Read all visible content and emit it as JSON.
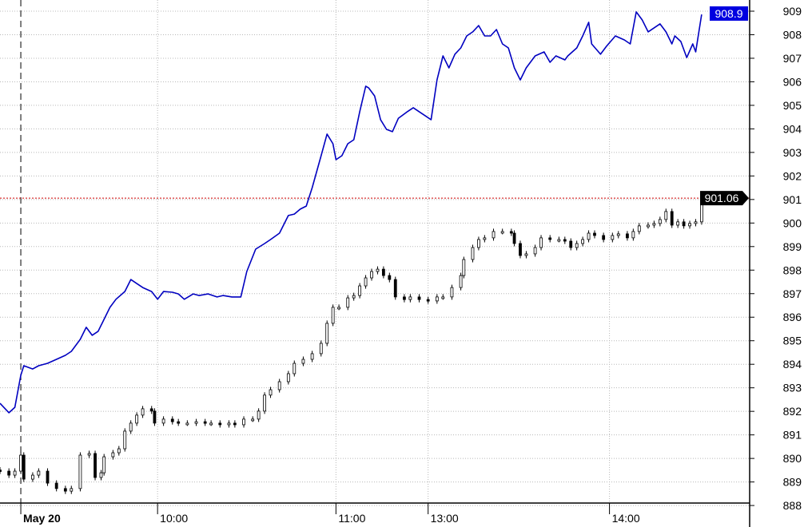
{
  "chart_data": {
    "type": "line",
    "title": "",
    "xlabel": "",
    "ylabel": "",
    "ylim": [
      887.9,
      909.5
    ],
    "xlim": [
      0,
      251
    ],
    "grid": true,
    "y_ticks": [
      "888",
      "889",
      "890",
      "891",
      "892",
      "893",
      "894",
      "895",
      "896",
      "897",
      "898",
      "899",
      "900",
      "901",
      "902",
      "903",
      "904",
      "905",
      "906",
      "907",
      "908",
      "909"
    ],
    "x_ticks": [
      {
        "label": "May 20",
        "x": 7,
        "bold": true
      },
      {
        "label": "10:00",
        "x": 53
      },
      {
        "label": "11:00",
        "x": 113
      },
      {
        "label": "13:00",
        "x": 144
      },
      {
        "label": "14:00",
        "x": 205
      }
    ],
    "session_divider_x": 7,
    "series": [
      {
        "style": "line",
        "color": "#0000c0",
        "last_label": "908.9",
        "x": [
          0,
          3,
          5,
          7,
          8,
          11,
          13,
          16,
          19,
          22,
          24,
          27,
          29,
          31,
          33,
          35,
          37,
          39,
          42,
          44,
          46,
          48,
          51,
          53,
          55,
          58,
          60,
          62,
          65,
          67,
          70,
          73,
          75,
          78,
          81,
          83,
          86,
          89,
          91,
          94,
          97,
          99,
          101,
          103,
          105,
          108,
          110,
          112,
          113,
          115,
          117,
          119,
          121,
          123,
          124,
          126,
          128,
          130,
          132,
          134,
          137,
          139,
          141,
          143,
          145,
          147,
          149,
          151,
          153,
          155,
          157,
          159,
          161,
          163,
          165,
          167,
          169,
          171,
          173,
          175,
          177,
          180,
          183,
          185,
          187,
          190,
          191,
          194,
          196,
          198,
          199,
          202,
          204,
          207,
          210,
          212,
          214,
          216,
          218,
          220,
          222,
          224,
          226,
          227,
          229,
          231,
          233,
          234,
          236
        ],
        "values": [
          892.34,
          891.94,
          892.17,
          893.53,
          893.94,
          893.8,
          893.94,
          894.04,
          894.21,
          894.38,
          894.55,
          895.06,
          895.57,
          895.23,
          895.4,
          895.91,
          896.42,
          896.76,
          897.09,
          897.6,
          897.43,
          897.26,
          897.09,
          896.76,
          897.09,
          897.06,
          896.99,
          896.76,
          896.99,
          896.92,
          896.99,
          896.86,
          896.92,
          896.86,
          896.86,
          897.94,
          898.89,
          899.13,
          899.3,
          899.57,
          900.32,
          900.38,
          900.59,
          900.72,
          901.5,
          902.86,
          903.78,
          903.37,
          902.69,
          902.86,
          903.37,
          903.54,
          904.73,
          905.81,
          905.74,
          905.4,
          904.39,
          903.98,
          903.88,
          904.45,
          904.73,
          904.9,
          904.73,
          904.56,
          904.39,
          906.08,
          907.1,
          906.59,
          907.17,
          907.44,
          907.95,
          908.12,
          908.39,
          907.95,
          907.95,
          908.22,
          907.61,
          907.44,
          906.59,
          906.08,
          906.59,
          907.1,
          907.27,
          906.83,
          907.1,
          906.93,
          907.1,
          907.44,
          907.95,
          908.53,
          907.61,
          907.17,
          907.51,
          907.95,
          907.78,
          907.61,
          908.97,
          908.63,
          908.12,
          908.29,
          908.46,
          908.12,
          907.61,
          907.95,
          907.71,
          907.03,
          907.61,
          907.27,
          908.86
        ]
      },
      {
        "style": "candlestick",
        "color": "#000000",
        "last_label": "901.06",
        "reference_line": 901.06,
        "reference_color": "#d00000",
        "x": [
          0,
          3,
          5,
          7,
          8,
          11,
          13,
          16,
          19,
          22,
          24,
          27,
          30,
          32,
          34,
          35,
          38,
          40,
          42,
          44,
          46,
          48,
          51,
          52,
          55,
          58,
          60,
          63,
          66,
          69,
          71,
          74,
          77,
          79,
          82,
          85,
          87,
          89,
          91,
          94,
          97,
          99,
          102,
          105,
          108,
          110,
          112,
          114,
          117,
          119,
          121,
          123,
          125,
          127,
          129,
          131,
          133,
          136,
          138,
          141,
          144,
          147,
          149,
          152,
          155,
          156,
          159,
          161,
          163,
          166,
          169,
          172,
          173,
          175,
          177,
          180,
          182,
          185,
          188,
          190,
          192,
          194,
          196,
          198,
          200,
          203,
          206,
          208,
          211,
          213,
          215,
          218,
          220,
          222,
          224,
          226,
          228,
          230,
          232,
          234,
          236
        ],
        "values": [
          889.46,
          889.29,
          889.46,
          890.14,
          889.12,
          889.29,
          889.46,
          888.95,
          888.72,
          888.61,
          888.72,
          890.14,
          890.21,
          889.19,
          889.39,
          890.07,
          890.24,
          890.41,
          891.16,
          891.5,
          891.84,
          892.11,
          892.01,
          891.5,
          891.67,
          891.56,
          891.5,
          891.5,
          891.56,
          891.5,
          891.5,
          891.43,
          891.5,
          891.43,
          891.67,
          891.67,
          892.01,
          892.69,
          892.92,
          893.26,
          893.6,
          894.04,
          894.21,
          894.45,
          894.89,
          895.74,
          896.42,
          896.42,
          896.82,
          896.92,
          897.33,
          897.67,
          897.94,
          898.04,
          897.77,
          897.6,
          896.86,
          896.75,
          896.86,
          896.75,
          896.69,
          896.86,
          896.86,
          897.26,
          897.77,
          898.45,
          898.96,
          899.3,
          899.37,
          899.64,
          899.64,
          899.57,
          899.13,
          898.62,
          898.69,
          898.96,
          899.37,
          899.3,
          899.3,
          899.23,
          898.96,
          899.13,
          899.3,
          899.57,
          899.47,
          899.3,
          899.47,
          899.54,
          899.37,
          899.64,
          899.88,
          899.91,
          899.98,
          900.15,
          900.49,
          899.91,
          900.05,
          899.88,
          899.98,
          900.05,
          901.06
        ]
      }
    ]
  }
}
